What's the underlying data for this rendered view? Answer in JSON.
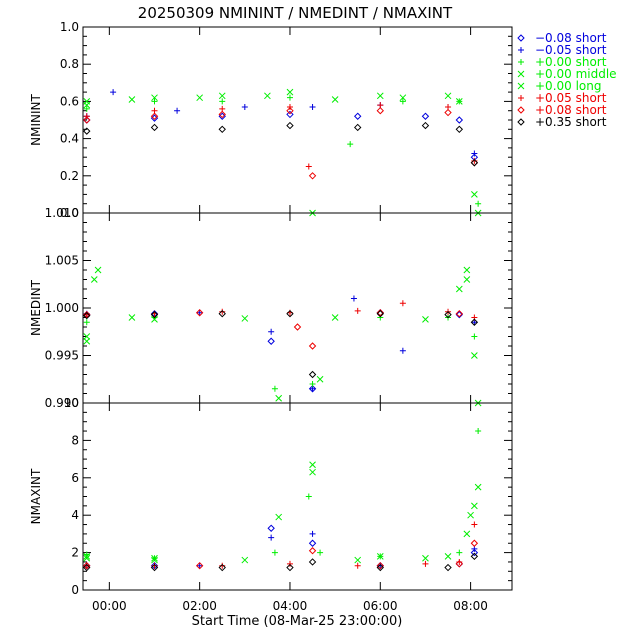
{
  "title": "20250309 NMININT / NMEDINT / NMAXINT",
  "xlabel": "Start Time (08-Mar-25 23:00:00)",
  "colors": {
    "black": "#000000",
    "blue": "#0000dd",
    "green": "#00ee00",
    "red": "#ee0000"
  },
  "legend": [
    {
      "symbol": "diamond",
      "color": "#0000dd",
      "label": "−0.08 short"
    },
    {
      "symbol": "plus",
      "color": "#0000dd",
      "label": "−0.05 short"
    },
    {
      "symbol": "plus",
      "color": "#00ee00",
      "label": "+0.00 short"
    },
    {
      "symbol": "x",
      "color": "#00ee00",
      "label": "+0.00 middle"
    },
    {
      "symbol": "x",
      "color": "#00ee00",
      "label": "+0.00 long"
    },
    {
      "symbol": "plus",
      "color": "#ee0000",
      "label": "+0.05 short"
    },
    {
      "symbol": "diamond",
      "color": "#ee0000",
      "label": "+0.08 short"
    },
    {
      "symbol": "diamond",
      "color": "#000000",
      "label": "+0.35 short"
    }
  ],
  "chart_data": [
    {
      "type": "scatter",
      "ylabel": "NMININT",
      "xlim": [
        "-00:35",
        "08:55"
      ],
      "ylim": [
        0.0,
        1.0
      ],
      "yticks": [
        "0.0",
        "0.2",
        "0.4",
        "0.6",
        "0.8",
        "1.0"
      ],
      "xticks": [
        "00:00",
        "02:00",
        "04:00",
        "06:00",
        "08:00"
      ],
      "series": [
        {
          "name": "−0.08 short",
          "marker": "diamond",
          "color": "#0000dd",
          "x": [
            "-00:30",
            "01:00",
            "02:30",
            "04:00",
            "05:30",
            "07:00",
            "07:45",
            "08:05"
          ],
          "y": [
            0.5,
            0.51,
            0.52,
            0.53,
            0.52,
            0.52,
            0.5,
            0.3
          ]
        },
        {
          "name": "−0.05 short",
          "marker": "plus",
          "color": "#0000dd",
          "x": [
            "-00:30",
            "00:05",
            "01:30",
            "03:00",
            "04:30",
            "06:00",
            "07:30",
            "08:05"
          ],
          "y": [
            0.52,
            0.65,
            0.55,
            0.57,
            0.57,
            0.58,
            0.57,
            0.32
          ]
        },
        {
          "name": "+0.00 short",
          "marker": "plus",
          "color": "#00ee00",
          "x": [
            "-00:30",
            "01:00",
            "02:30",
            "04:00",
            "05:20",
            "06:30",
            "07:45",
            "08:10"
          ],
          "y": [
            0.56,
            0.6,
            0.6,
            0.62,
            0.37,
            0.6,
            0.6,
            0.05
          ]
        },
        {
          "name": "+0.00 middle",
          "marker": "x",
          "color": "#00ee00",
          "x": [
            "-00:30",
            "01:00",
            "02:30",
            "04:00",
            "04:30",
            "06:00",
            "07:30",
            "08:10"
          ],
          "y": [
            0.6,
            0.62,
            0.63,
            0.65,
            0.0,
            0.63,
            0.63,
            0.0
          ]
        },
        {
          "name": "+0.00 long",
          "marker": "x",
          "color": "#00ee00",
          "x": [
            "-00:30",
            "00:30",
            "02:00",
            "03:30",
            "05:00",
            "06:30",
            "07:45",
            "08:05"
          ],
          "y": [
            0.58,
            0.61,
            0.62,
            0.63,
            0.61,
            0.62,
            0.6,
            0.1
          ]
        },
        {
          "name": "+0.05 short",
          "marker": "plus",
          "color": "#ee0000",
          "x": [
            "-00:30",
            "01:00",
            "02:30",
            "04:00",
            "04:25",
            "06:00",
            "07:30",
            "08:05"
          ],
          "y": [
            0.52,
            0.55,
            0.56,
            0.57,
            0.25,
            0.58,
            0.57,
            0.28
          ]
        },
        {
          "name": "+0.08 short",
          "marker": "diamond",
          "color": "#ee0000",
          "x": [
            "-00:30",
            "01:00",
            "02:30",
            "04:00",
            "04:30",
            "06:00",
            "07:30",
            "08:05"
          ],
          "y": [
            0.5,
            0.52,
            0.53,
            0.55,
            0.2,
            0.55,
            0.54,
            0.27
          ]
        },
        {
          "name": "+0.35 short",
          "marker": "diamond",
          "color": "#000000",
          "x": [
            "-00:30",
            "01:00",
            "02:30",
            "04:00",
            "05:30",
            "07:00",
            "07:45",
            "08:05"
          ],
          "y": [
            0.44,
            0.46,
            0.45,
            0.47,
            0.46,
            0.47,
            0.45,
            0.27
          ]
        }
      ]
    },
    {
      "type": "scatter",
      "ylabel": "NMEDINT",
      "xlim": [
        "-00:35",
        "08:55"
      ],
      "ylim": [
        0.99,
        1.01
      ],
      "yticks": [
        "0.990",
        "0.995",
        "1.000",
        "1.005",
        "1.010"
      ],
      "xticks": [
        "00:00",
        "02:00",
        "04:00",
        "06:00",
        "08:00"
      ],
      "series": [
        {
          "name": "−0.08 short",
          "marker": "diamond",
          "color": "#0000dd",
          "x": [
            "-00:30",
            "01:00",
            "03:35",
            "04:30",
            "06:00",
            "07:45"
          ],
          "y": [
            0.9993,
            0.9994,
            0.9965,
            0.9915,
            0.9995,
            0.9993
          ]
        },
        {
          "name": "−0.05 short",
          "marker": "plus",
          "color": "#0000dd",
          "x": [
            "-00:30",
            "02:00",
            "03:35",
            "04:30",
            "05:25",
            "06:30",
            "08:05"
          ],
          "y": [
            0.9994,
            0.9995,
            0.9975,
            0.9915,
            1.001,
            0.9955,
            0.9985
          ]
        },
        {
          "name": "+0.00 short",
          "marker": "plus",
          "color": "#00ee00",
          "x": [
            "-00:30",
            "01:00",
            "03:40",
            "04:30",
            "06:00",
            "07:30",
            "08:05"
          ],
          "y": [
            0.9985,
            0.999,
            0.9915,
            0.992,
            0.999,
            0.999,
            0.997
          ]
        },
        {
          "name": "+0.00 middle",
          "marker": "x",
          "color": "#00ee00",
          "x": [
            "-00:30",
            "-00:15",
            "00:30",
            "03:45",
            "04:40",
            "07:45",
            "07:55",
            "08:05"
          ],
          "y": [
            0.9965,
            1.004,
            0.999,
            0.9905,
            0.9925,
            1.002,
            1.004,
            0.995
          ]
        },
        {
          "name": "+0.00 long",
          "marker": "x",
          "color": "#00ee00",
          "x": [
            "-00:30",
            "-00:20",
            "01:00",
            "03:00",
            "05:00",
            "07:00",
            "07:55",
            "08:10"
          ],
          "y": [
            0.997,
            1.003,
            0.9988,
            0.9989,
            0.999,
            0.9988,
            1.003,
            0.99
          ]
        },
        {
          "name": "+0.05 short",
          "marker": "plus",
          "color": "#ee0000",
          "x": [
            "-00:30",
            "01:00",
            "02:30",
            "04:00",
            "05:30",
            "06:30",
            "07:30",
            "08:05"
          ],
          "y": [
            0.9993,
            0.9994,
            0.9996,
            0.9995,
            0.9997,
            1.0005,
            0.9996,
            0.999
          ]
        },
        {
          "name": "+0.08 short",
          "marker": "diamond",
          "color": "#ee0000",
          "x": [
            "-00:30",
            "02:00",
            "04:10",
            "04:30",
            "06:00",
            "07:45"
          ],
          "y": [
            0.9993,
            0.9995,
            0.998,
            0.996,
            0.9995,
            0.9994
          ]
        },
        {
          "name": "+0.35 short",
          "marker": "diamond",
          "color": "#000000",
          "x": [
            "-00:30",
            "01:00",
            "02:30",
            "04:00",
            "04:30",
            "06:00",
            "07:30",
            "08:05"
          ],
          "y": [
            0.9992,
            0.9993,
            0.9994,
            0.9994,
            0.993,
            0.9994,
            0.9993,
            0.9985
          ]
        }
      ]
    },
    {
      "type": "scatter",
      "ylabel": "NMAXINT",
      "xlim": [
        "-00:35",
        "08:55"
      ],
      "ylim": [
        0,
        10
      ],
      "yticks": [
        "0",
        "2",
        "4",
        "6",
        "8",
        "10"
      ],
      "xticks": [
        "00:00",
        "02:00",
        "04:00",
        "06:00",
        "08:00"
      ],
      "series": [
        {
          "name": "−0.08 short",
          "marker": "diamond",
          "color": "#0000dd",
          "x": [
            "-00:30",
            "01:00",
            "03:35",
            "04:30",
            "06:00",
            "07:45",
            "08:05"
          ],
          "y": [
            1.3,
            1.3,
            3.3,
            2.5,
            1.3,
            1.4,
            2.0
          ]
        },
        {
          "name": "−0.05 short",
          "marker": "plus",
          "color": "#0000dd",
          "x": [
            "-00:30",
            "02:00",
            "03:35",
            "04:30",
            "06:00",
            "08:05"
          ],
          "y": [
            1.3,
            1.3,
            2.8,
            3.0,
            1.3,
            2.2
          ]
        },
        {
          "name": "+0.00 short",
          "marker": "plus",
          "color": "#00ee00",
          "x": [
            "-00:30",
            "01:00",
            "03:40",
            "04:25",
            "04:40",
            "06:00",
            "07:45",
            "08:10"
          ],
          "y": [
            1.9,
            1.7,
            2.0,
            5.0,
            2.0,
            1.8,
            2.0,
            8.5
          ]
        },
        {
          "name": "+0.00 middle",
          "marker": "x",
          "color": "#00ee00",
          "x": [
            "-00:30",
            "01:00",
            "03:45",
            "04:30",
            "06:00",
            "07:30",
            "08:00",
            "08:10"
          ],
          "y": [
            1.8,
            1.7,
            3.9,
            6.7,
            1.8,
            1.8,
            4.0,
            5.5
          ]
        },
        {
          "name": "+0.00 long",
          "marker": "x",
          "color": "#00ee00",
          "x": [
            "-00:30",
            "01:00",
            "03:00",
            "04:30",
            "05:30",
            "07:00",
            "07:55",
            "08:05"
          ],
          "y": [
            1.7,
            1.6,
            1.6,
            6.3,
            1.6,
            1.7,
            3.0,
            4.5
          ]
        },
        {
          "name": "+0.05 short",
          "marker": "plus",
          "color": "#ee0000",
          "x": [
            "-00:30",
            "01:00",
            "02:30",
            "04:00",
            "05:30",
            "07:00",
            "07:45",
            "08:05"
          ],
          "y": [
            1.3,
            1.3,
            1.3,
            1.4,
            1.3,
            1.4,
            1.5,
            3.5
          ]
        },
        {
          "name": "+0.08 short",
          "marker": "diamond",
          "color": "#ee0000",
          "x": [
            "-00:30",
            "02:00",
            "04:30",
            "06:00",
            "07:45",
            "08:05"
          ],
          "y": [
            1.3,
            1.3,
            2.1,
            1.3,
            1.4,
            2.5
          ]
        },
        {
          "name": "+0.35 short",
          "marker": "diamond",
          "color": "#000000",
          "x": [
            "-00:30",
            "01:00",
            "02:30",
            "04:00",
            "04:30",
            "06:00",
            "07:30",
            "08:05"
          ],
          "y": [
            1.2,
            1.2,
            1.2,
            1.2,
            1.5,
            1.2,
            1.2,
            1.8
          ]
        }
      ]
    }
  ]
}
